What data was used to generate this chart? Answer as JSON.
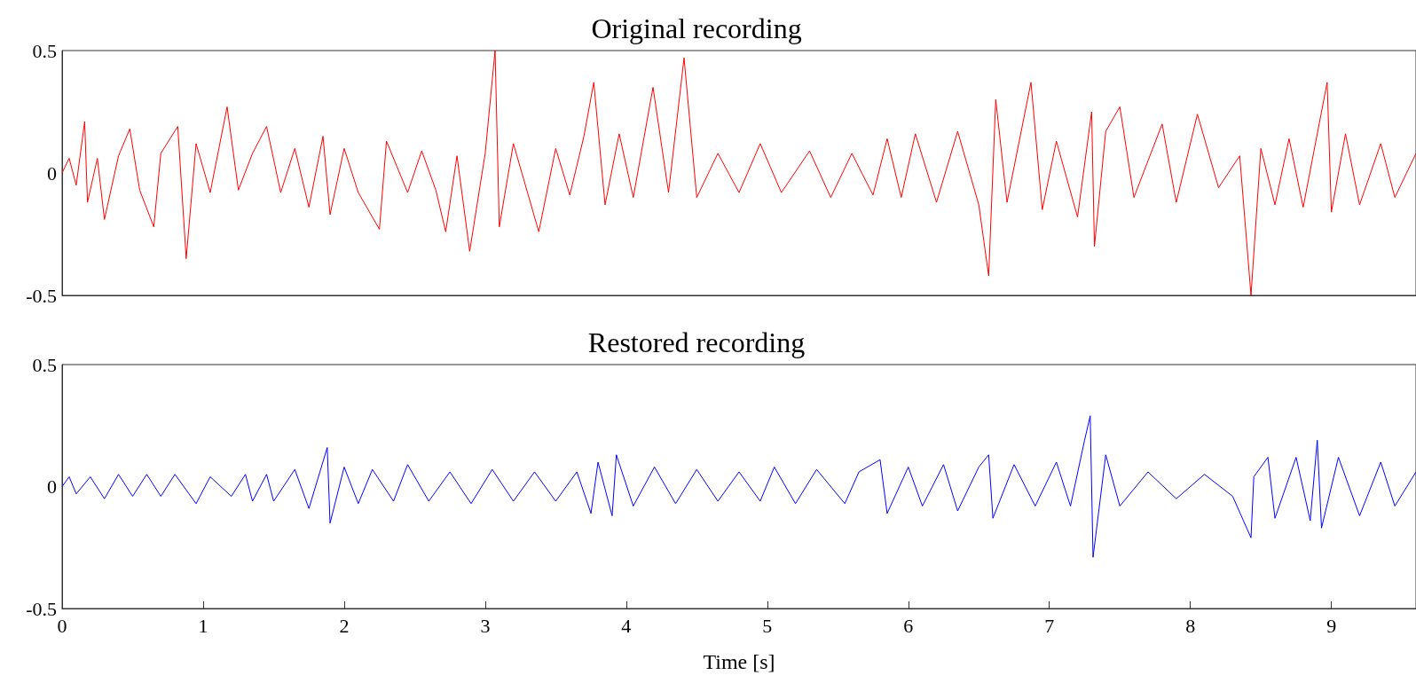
{
  "chart_data": [
    {
      "type": "line",
      "title": "Original recording",
      "xlim": [
        0,
        9.6
      ],
      "xticks": [
        0,
        1,
        2,
        3,
        4,
        5,
        6,
        7,
        8,
        9
      ],
      "ylim": [
        -0.5,
        0.5
      ],
      "yticks": [
        -0.5,
        0,
        0.5
      ],
      "tick_labels": "y",
      "grid": false,
      "marker": "none",
      "series": [
        {
          "color": "#ff0000",
          "x": [
            0,
            0.05,
            0.1,
            0.16,
            0.18,
            0.25,
            0.3,
            0.4,
            0.48,
            0.55,
            0.65,
            0.7,
            0.82,
            0.88,
            0.95,
            1.05,
            1.17,
            1.25,
            1.35,
            1.45,
            1.55,
            1.65,
            1.75,
            1.85,
            1.9,
            2.0,
            2.1,
            2.25,
            2.3,
            2.45,
            2.55,
            2.65,
            2.72,
            2.8,
            2.89,
            3.0,
            3.07,
            3.1,
            3.2,
            3.3,
            3.38,
            3.5,
            3.6,
            3.7,
            3.77,
            3.85,
            3.95,
            4.05,
            4.19,
            4.3,
            4.41,
            4.5,
            4.65,
            4.8,
            4.95,
            5.1,
            5.3,
            5.45,
            5.6,
            5.75,
            5.85,
            5.95,
            6.05,
            6.2,
            6.35,
            6.5,
            6.57,
            6.62,
            6.7,
            6.87,
            6.95,
            7.05,
            7.2,
            7.3,
            7.32,
            7.4,
            7.5,
            7.6,
            7.8,
            7.9,
            8.05,
            8.2,
            8.35,
            8.43,
            8.5,
            8.6,
            8.7,
            8.8,
            8.97,
            9.0,
            9.1,
            9.2,
            9.35,
            9.45,
            9.6
          ],
          "values": [
            0,
            0.06,
            -0.05,
            0.21,
            -0.12,
            0.06,
            -0.19,
            0.07,
            0.18,
            -0.07,
            -0.22,
            0.08,
            0.19,
            -0.35,
            0.12,
            -0.08,
            0.27,
            -0.07,
            0.08,
            0.19,
            -0.08,
            0.1,
            -0.14,
            0.15,
            -0.17,
            0.1,
            -0.08,
            -0.23,
            0.13,
            -0.08,
            0.09,
            -0.07,
            -0.24,
            0.07,
            -0.32,
            0.08,
            0.5,
            -0.22,
            0.12,
            -0.08,
            -0.24,
            0.1,
            -0.09,
            0.15,
            0.37,
            -0.13,
            0.16,
            -0.1,
            0.35,
            -0.08,
            0.47,
            -0.1,
            0.08,
            -0.08,
            0.12,
            -0.08,
            0.09,
            -0.1,
            0.08,
            -0.09,
            0.14,
            -0.1,
            0.16,
            -0.12,
            0.17,
            -0.13,
            -0.42,
            0.3,
            -0.12,
            0.37,
            -0.15,
            0.13,
            -0.18,
            0.25,
            -0.3,
            0.17,
            0.27,
            -0.1,
            0.2,
            -0.12,
            0.24,
            -0.06,
            0.07,
            -0.5,
            0.1,
            -0.13,
            0.14,
            -0.14,
            0.37,
            -0.16,
            0.16,
            -0.13,
            0.12,
            -0.1,
            0.08
          ]
        }
      ]
    },
    {
      "type": "line",
      "title": "Restored recording",
      "xlabel": "Time [s]",
      "xlim": [
        0,
        9.6
      ],
      "xticks": [
        0,
        1,
        2,
        3,
        4,
        5,
        6,
        7,
        8,
        9
      ],
      "ylim": [
        -0.5,
        0.5
      ],
      "yticks": [
        -0.5,
        0,
        0.5
      ],
      "grid": false,
      "marker": "none",
      "series": [
        {
          "color": "#0000ff",
          "x": [
            0,
            0.05,
            0.1,
            0.2,
            0.3,
            0.4,
            0.5,
            0.6,
            0.7,
            0.8,
            0.95,
            1.05,
            1.2,
            1.3,
            1.35,
            1.45,
            1.5,
            1.65,
            1.75,
            1.88,
            1.9,
            2.0,
            2.1,
            2.2,
            2.35,
            2.45,
            2.6,
            2.75,
            2.9,
            3.05,
            3.2,
            3.35,
            3.5,
            3.65,
            3.75,
            3.8,
            3.9,
            3.93,
            4.05,
            4.2,
            4.35,
            4.5,
            4.65,
            4.8,
            4.95,
            5.05,
            5.2,
            5.35,
            5.55,
            5.65,
            5.8,
            5.85,
            6.0,
            6.1,
            6.25,
            6.35,
            6.5,
            6.57,
            6.6,
            6.75,
            6.9,
            7.05,
            7.15,
            7.25,
            7.29,
            7.31,
            7.4,
            7.5,
            7.7,
            7.9,
            8.1,
            8.3,
            8.43,
            8.45,
            8.55,
            8.6,
            8.75,
            8.85,
            8.9,
            8.93,
            9.05,
            9.2,
            9.35,
            9.45,
            9.6
          ],
          "values": [
            0,
            0.04,
            -0.03,
            0.04,
            -0.05,
            0.05,
            -0.04,
            0.05,
            -0.04,
            0.05,
            -0.07,
            0.04,
            -0.04,
            0.05,
            -0.06,
            0.05,
            -0.06,
            0.07,
            -0.09,
            0.16,
            -0.15,
            0.08,
            -0.07,
            0.07,
            -0.06,
            0.09,
            -0.06,
            0.06,
            -0.07,
            0.07,
            -0.06,
            0.06,
            -0.06,
            0.06,
            -0.11,
            0.1,
            -0.12,
            0.13,
            -0.08,
            0.08,
            -0.07,
            0.07,
            -0.06,
            0.06,
            -0.06,
            0.08,
            -0.07,
            0.07,
            -0.07,
            0.06,
            0.11,
            -0.11,
            0.08,
            -0.08,
            0.09,
            -0.1,
            0.08,
            0.13,
            -0.13,
            0.09,
            -0.08,
            0.1,
            -0.08,
            0.19,
            0.29,
            -0.29,
            0.13,
            -0.08,
            0.06,
            -0.05,
            0.05,
            -0.04,
            -0.21,
            0.04,
            0.12,
            -0.13,
            0.12,
            -0.14,
            0.19,
            -0.17,
            0.12,
            -0.12,
            0.1,
            -0.08,
            0.06
          ]
        }
      ]
    }
  ]
}
